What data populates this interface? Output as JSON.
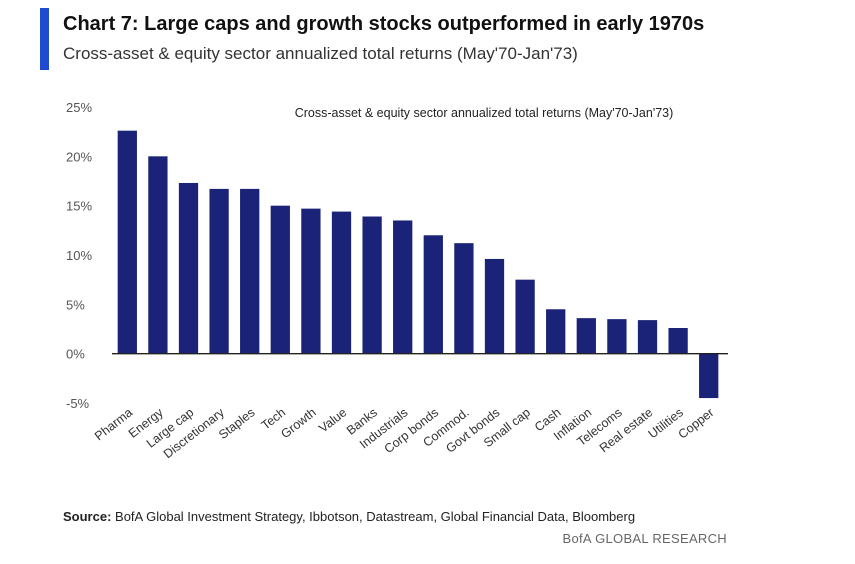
{
  "header": {
    "title": "Chart 7: Large caps and growth stocks outperformed in early 1970s",
    "subtitle": "Cross-asset & equity sector annualized total returns (May'70-Jan'73)"
  },
  "footer": {
    "source_label": "Source:",
    "source_text": "BofA Global Investment Strategy, Ibbotson, Datastream, Global Financial Data, Bloomberg",
    "credit": "BofA GLOBAL RESEARCH"
  },
  "colors": {
    "accent": "#1f4bd1",
    "bar": "#1a2377",
    "axis": "#222222"
  },
  "chart_data": {
    "type": "bar",
    "title": "Cross-asset & equity sector annualized total returns (May'70-Jan'73)",
    "xlabel": "",
    "ylabel": "",
    "ylim": [
      -5,
      25
    ],
    "yticks": [
      25,
      20,
      15,
      10,
      5,
      0,
      -5
    ],
    "ytick_labels": [
      "25%",
      "20%",
      "15%",
      "10%",
      "5%",
      "0%",
      "-5%"
    ],
    "grid": false,
    "categories": [
      "Pharma",
      "Energy",
      "Large cap",
      "Discretionary",
      "Staples",
      "Tech",
      "Growth",
      "Value",
      "Banks",
      "Industrials",
      "Corp bonds",
      "Commod.",
      "Govt bonds",
      "Small cap",
      "Cash",
      "Inflation",
      "Telecoms",
      "Real estate",
      "Utilities",
      "Copper"
    ],
    "values": [
      22.6,
      20.0,
      17.3,
      16.7,
      16.7,
      15.0,
      14.7,
      14.4,
      13.9,
      13.5,
      12.0,
      11.2,
      9.6,
      7.5,
      4.5,
      3.6,
      3.5,
      3.4,
      2.6,
      -4.5
    ]
  }
}
